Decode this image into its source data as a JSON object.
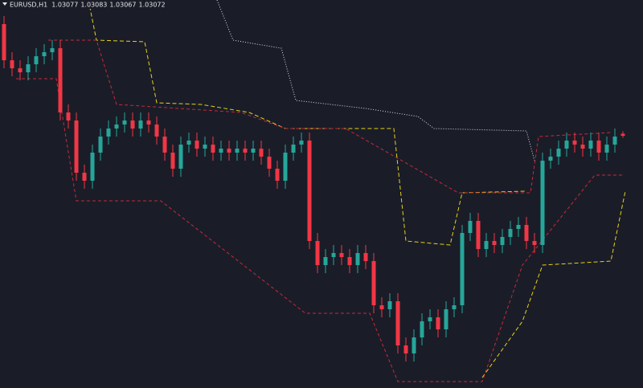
{
  "chart_data": {
    "type": "candlestick",
    "title": "EURUSD,H1",
    "ylim": [
      1.02444,
      1.0341
    ],
    "up_color": "#26a69a",
    "down_color": "#f23645",
    "open": [
      1.0335,
      1.0326,
      1.0324,
      1.0323,
      1.0325,
      1.0327,
      1.0328,
      1.0329,
      1.0313,
      1.0311,
      1.0298,
      1.0296,
      1.0303,
      1.0307,
      1.0309,
      1.031,
      1.0311,
      1.0309,
      1.0311,
      1.031,
      1.0307,
      1.0303,
      1.0299,
      1.0305,
      1.0306,
      1.0304,
      1.0305,
      1.0303,
      1.0304,
      1.0303,
      1.0304,
      1.0303,
      1.0304,
      1.0302,
      1.0299,
      1.0296,
      1.0303,
      1.0305,
      1.0306,
      1.0281,
      1.0275,
      1.0277,
      1.0278,
      1.0277,
      1.0275,
      1.0278,
      1.0276,
      1.0265,
      1.0264,
      1.0266,
      1.0255,
      1.0253,
      1.0257,
      1.0261,
      1.0262,
      1.0259,
      1.0264,
      1.0265,
      1.0283,
      1.0286,
      1.0279,
      1.0281,
      1.028,
      1.0282,
      1.0284,
      1.0285,
      1.0281,
      1.028,
      1.0301,
      1.0302,
      1.0304,
      1.0306,
      1.0305,
      1.0304,
      1.0306,
      1.0303,
      1.0305,
      1.03077
    ],
    "high": [
      1.0337,
      1.0328,
      1.0326,
      1.0327,
      1.0329,
      1.033,
      1.0331,
      1.0331,
      1.0315,
      1.0313,
      1.03,
      1.0305,
      1.0309,
      1.0311,
      1.0312,
      1.0313,
      1.0313,
      1.0313,
      1.0313,
      1.0312,
      1.0309,
      1.0305,
      1.0307,
      1.0308,
      1.0308,
      1.0307,
      1.0307,
      1.0306,
      1.0306,
      1.0306,
      1.0306,
      1.0306,
      1.0306,
      1.0304,
      1.0301,
      1.0305,
      1.0307,
      1.0308,
      1.0308,
      1.0283,
      1.0279,
      1.028,
      1.028,
      1.0279,
      1.028,
      1.028,
      1.0278,
      1.0267,
      1.0268,
      1.0268,
      1.0257,
      1.0259,
      1.0263,
      1.0264,
      1.0264,
      1.0266,
      1.0267,
      1.0285,
      1.0288,
      1.0288,
      1.0283,
      1.0283,
      1.0284,
      1.0286,
      1.0287,
      1.0287,
      1.0283,
      1.0303,
      1.0304,
      1.0306,
      1.0308,
      1.0308,
      1.0307,
      1.0308,
      1.0308,
      1.0307,
      1.0309,
      1.03083
    ],
    "low": [
      1.0324,
      1.0322,
      1.0321,
      1.0321,
      1.0323,
      1.0325,
      1.0326,
      1.0311,
      1.0309,
      1.0296,
      1.0294,
      1.0294,
      1.0301,
      1.0305,
      1.0307,
      1.0308,
      1.0307,
      1.0307,
      1.0308,
      1.0305,
      1.0301,
      1.0297,
      1.0297,
      1.0303,
      1.0302,
      1.0302,
      1.0301,
      1.0301,
      1.0301,
      1.0301,
      1.0301,
      1.0301,
      1.03,
      1.0297,
      1.0294,
      1.0294,
      1.0301,
      1.0303,
      1.0279,
      1.0273,
      1.0273,
      1.0275,
      1.0275,
      1.0273,
      1.0273,
      1.0274,
      1.0263,
      1.0262,
      1.0262,
      1.0253,
      1.0251,
      1.0251,
      1.0255,
      1.0259,
      1.0257,
      1.0257,
      1.0262,
      1.0263,
      1.0281,
      1.0277,
      1.0277,
      1.0278,
      1.0278,
      1.028,
      1.0282,
      1.0279,
      1.0278,
      1.0278,
      1.0299,
      1.03,
      1.0302,
      1.0303,
      1.0302,
      1.0302,
      1.0301,
      1.0301,
      1.0303,
      1.03067
    ],
    "close": [
      1.0326,
      1.0324,
      1.0323,
      1.0325,
      1.0327,
      1.0328,
      1.0329,
      1.0313,
      1.0311,
      1.0298,
      1.0296,
      1.0303,
      1.0307,
      1.0309,
      1.031,
      1.0311,
      1.0309,
      1.0311,
      1.031,
      1.0307,
      1.0303,
      1.0299,
      1.0305,
      1.0306,
      1.0304,
      1.0305,
      1.0303,
      1.0304,
      1.0303,
      1.0304,
      1.0303,
      1.0304,
      1.0302,
      1.0299,
      1.0296,
      1.0303,
      1.0305,
      1.0306,
      1.0281,
      1.0275,
      1.0277,
      1.0278,
      1.0277,
      1.0275,
      1.0278,
      1.0276,
      1.0265,
      1.0264,
      1.0266,
      1.0255,
      1.0253,
      1.0257,
      1.0261,
      1.0262,
      1.0259,
      1.0264,
      1.0265,
      1.0283,
      1.0286,
      1.0279,
      1.0281,
      1.028,
      1.0282,
      1.0284,
      1.0285,
      1.0281,
      1.028,
      1.0301,
      1.0302,
      1.0304,
      1.0306,
      1.0305,
      1.0304,
      1.0306,
      1.0303,
      1.0305,
      1.0307,
      1.03072
    ],
    "lines": [
      {
        "color": "#e0e0e0",
        "dash": "1,2",
        "x": [
          26.5,
          28.5,
          34.5,
          36.3,
          45,
          51.5,
          53.5,
          65,
          66
        ],
        "values": [
          1.0341,
          1.0331,
          1.0329,
          1.0316,
          1.0314,
          1.0312,
          1.0309,
          1.03084,
          1.0301
        ]
      },
      {
        "color": "#e6d21a",
        "dash": "5,3",
        "x": [
          10.5,
          11.5,
          17.5,
          19,
          24.5,
          30.5,
          35,
          48.5,
          50,
          55.5,
          57,
          65
        ],
        "values": [
          1.0341,
          1.0331,
          1.03306,
          1.03154,
          1.0315,
          1.0313,
          1.0309,
          1.0309,
          1.0281,
          1.028,
          1.0293,
          1.02934
        ]
      },
      {
        "color": "#e6d21a",
        "dash": "5,3",
        "x": [
          59.5,
          64.5,
          67,
          75.5,
          77.3
        ],
        "values": [
          1.0247,
          1.0261,
          1.0275,
          1.0276,
          1.02934
        ]
      },
      {
        "color": "#c8283a",
        "dash": "4,3",
        "x": [
          5.5,
          11.5,
          14,
          29.5,
          35,
          37.5,
          42.5,
          56.5,
          65.5,
          66.5,
          75.5
        ],
        "values": [
          1.0331,
          1.0331,
          1.0315,
          1.0313,
          1.0309,
          1.0309,
          1.0309,
          1.0293,
          1.0293,
          1.0307,
          1.0308
        ]
      },
      {
        "color": "#c8283a",
        "dash": "4,3",
        "x": [
          1.5,
          6.5,
          9,
          19.5,
          37.5,
          45.5,
          49,
          59.5,
          64.5,
          73.5,
          77
        ],
        "values": [
          1.03214,
          1.03214,
          1.0291,
          1.0291,
          1.0263,
          1.0263,
          1.0246,
          1.0246,
          1.0275,
          1.02974,
          1.02974
        ]
      }
    ]
  }
}
